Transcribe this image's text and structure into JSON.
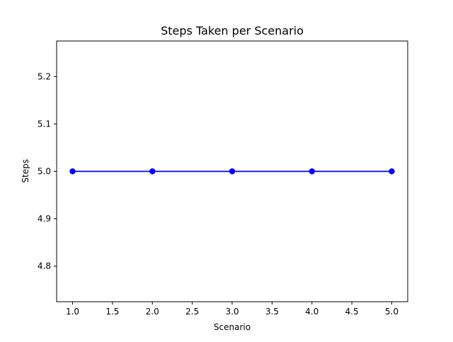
{
  "chart_data": {
    "type": "line",
    "title": "Steps Taken per Scenario",
    "xlabel": "Scenario",
    "ylabel": "Steps",
    "x": [
      1,
      2,
      3,
      4,
      5
    ],
    "series": [
      {
        "values": [
          5,
          5,
          5,
          5,
          5
        ],
        "color": "#0000ff",
        "marker": "circle"
      }
    ],
    "xlim": [
      0.8,
      5.2
    ],
    "ylim": [
      4.725,
      5.275
    ],
    "xticks": [
      1.0,
      1.5,
      2.0,
      2.5,
      3.0,
      3.5,
      4.0,
      4.5,
      5.0
    ],
    "xtick_labels": [
      "1.0",
      "1.5",
      "2.0",
      "2.5",
      "3.0",
      "3.5",
      "4.0",
      "4.5",
      "5.0"
    ],
    "yticks": [
      4.8,
      4.9,
      5.0,
      5.1,
      5.2
    ],
    "ytick_labels": [
      "4.8",
      "4.9",
      "5.0",
      "5.1",
      "5.2"
    ],
    "grid": false,
    "legend": false
  }
}
